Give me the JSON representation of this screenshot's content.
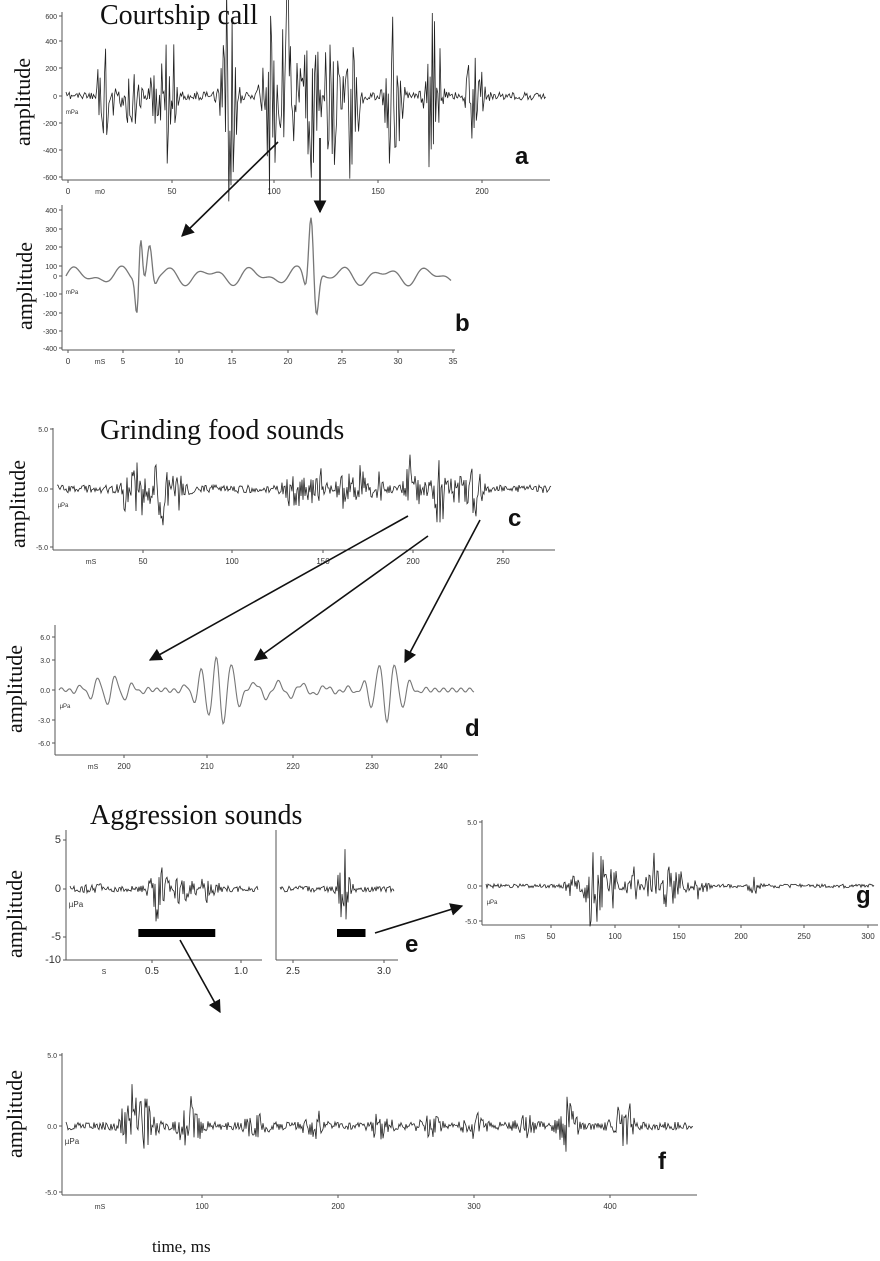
{
  "sections": {
    "courtship": "Courtship call",
    "grinding": "Grinding food sounds",
    "aggression": "Aggression sounds"
  },
  "y_label": "amplitude",
  "x_label": "time, ms",
  "panel_labels": {
    "a": "a",
    "b": "b",
    "c": "c",
    "d": "d",
    "e": "e",
    "f": "f",
    "g": "g"
  },
  "chart_data": [
    {
      "id": "a",
      "type": "line",
      "ylim": [
        -600,
        600
      ],
      "yticks": [
        "600",
        "400",
        "200",
        "0",
        "-200",
        "-400",
        "-600"
      ],
      "unit": "mPa",
      "x_unit": "mS",
      "xlim": [
        0,
        235
      ],
      "xticks": [
        "0",
        "50",
        "100",
        "150",
        "200"
      ],
      "x_unit_tick": "m0",
      "bursts": [
        [
          19,
          60
        ],
        [
          32,
          50
        ],
        [
          43,
          50
        ],
        [
          50,
          100
        ],
        [
          80,
          150
        ],
        [
          100,
          120
        ],
        [
          109,
          150
        ],
        [
          120,
          110
        ],
        [
          129,
          160
        ],
        [
          140,
          100
        ],
        [
          160,
          120
        ],
        [
          180,
          140
        ],
        [
          200,
          90
        ]
      ]
    },
    {
      "id": "b",
      "type": "line",
      "ylim": [
        -400,
        400
      ],
      "yticks": [
        "400",
        "300",
        "200",
        "100",
        "0",
        "-100",
        "-200",
        "-300",
        "-400"
      ],
      "unit": "mPa",
      "xlim": [
        0,
        35
      ],
      "xticks": [
        "0",
        "5",
        "10",
        "15",
        "20",
        "25",
        "30",
        "35"
      ],
      "x_unit_tick": "mS"
    },
    {
      "id": "c",
      "type": "line",
      "ylim": [
        -5.0,
        5.0
      ],
      "yticks": [
        "5.0",
        "0.0",
        "-5.0"
      ],
      "unit": "µPa",
      "xlim": [
        0,
        275
      ],
      "xticks": [
        "50",
        "100",
        "150",
        "200",
        "250"
      ],
      "x_unit_tick": "mS",
      "bursts": [
        [
          40,
          40
        ],
        [
          47,
          28
        ],
        [
          58,
          50
        ],
        [
          68,
          20
        ],
        [
          130,
          18
        ],
        [
          135,
          18
        ],
        [
          145,
          22
        ],
        [
          160,
          20
        ],
        [
          168,
          25
        ],
        [
          178,
          18
        ],
        [
          198,
          38
        ],
        [
          212,
          45
        ],
        [
          222,
          20
        ],
        [
          232,
          35
        ]
      ]
    },
    {
      "id": "d",
      "type": "line",
      "ylim": [
        -6.0,
        6.0
      ],
      "yticks": [
        "6.0",
        "3.0",
        "0.0",
        "-3.0",
        "-6.0"
      ],
      "unit": "µPa",
      "xlim": [
        195,
        245
      ],
      "xticks": [
        "200",
        "210",
        "220",
        "230",
        "240"
      ],
      "x_unit_tick": "mS"
    },
    {
      "id": "e_left",
      "type": "line",
      "ylim": [
        -10,
        5
      ],
      "yticks": [
        "5",
        "0",
        "-5",
        "-10"
      ],
      "unit": "µPa",
      "xlim": [
        0,
        1.1
      ],
      "xticks": [
        "0.5",
        "1.0"
      ],
      "x_unit_tick": "S",
      "bar": [
        0.4,
        0.85
      ]
    },
    {
      "id": "e_right",
      "type": "line",
      "ylim": [
        -10,
        5
      ],
      "xlim": [
        2.4,
        3.0
      ],
      "xticks": [
        "2.5",
        "3.0"
      ],
      "bar": [
        2.7,
        2.85
      ]
    },
    {
      "id": "f",
      "type": "line",
      "ylim": [
        -5.0,
        5.0
      ],
      "yticks": [
        "5.0",
        "0.0",
        "-5.0"
      ],
      "unit": "µPa",
      "xlim": [
        30,
        460
      ],
      "xticks": [
        "100",
        "200",
        "300",
        "400"
      ],
      "x_unit_tick": "mS",
      "bursts": [
        [
          75,
          42
        ],
        [
          85,
          30
        ],
        [
          115,
          35
        ],
        [
          160,
          20
        ],
        [
          200,
          18
        ],
        [
          245,
          15
        ],
        [
          280,
          12
        ],
        [
          310,
          14
        ],
        [
          345,
          12
        ],
        [
          375,
          32
        ],
        [
          412,
          36
        ]
      ]
    },
    {
      "id": "g",
      "type": "line",
      "ylim": [
        -5.0,
        5.0
      ],
      "yticks": [
        "5.0",
        "0.0",
        "-5.0"
      ],
      "unit": "µPa",
      "xlim": [
        15,
        305
      ],
      "xticks": [
        "50",
        "100",
        "150",
        "200",
        "250",
        "300"
      ],
      "x_unit_tick": "mS",
      "bursts": [
        [
          80,
          18
        ],
        [
          93,
          45
        ],
        [
          100,
          40
        ],
        [
          110,
          28
        ],
        [
          125,
          25
        ],
        [
          140,
          38
        ],
        [
          150,
          35
        ],
        [
          160,
          30
        ],
        [
          175,
          18
        ],
        [
          215,
          12
        ]
      ]
    }
  ]
}
